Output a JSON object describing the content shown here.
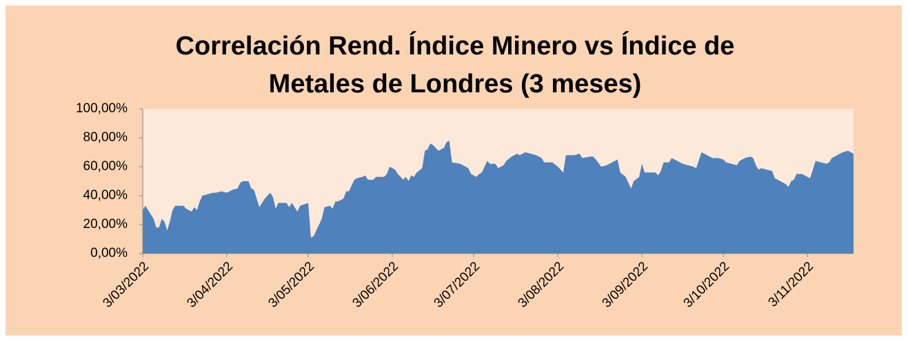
{
  "chart_data": {
    "type": "area",
    "title": "Correlación Rend. Índice Minero vs Índice de Metales de Londres (3 meses)",
    "color": "#4f81bd",
    "x": [
      "2022-03-03",
      "2022-03-04",
      "2022-03-07",
      "2022-03-08",
      "2022-03-09",
      "2022-03-10",
      "2022-03-11",
      "2022-03-12",
      "2022-03-13",
      "2022-03-14",
      "2022-03-15",
      "2022-03-18",
      "2022-03-19",
      "2022-03-21",
      "2022-03-22",
      "2022-03-23",
      "2022-03-24",
      "2022-03-25",
      "2022-03-27",
      "2022-03-29",
      "2022-03-30",
      "2022-04-01",
      "2022-04-03",
      "2022-04-05",
      "2022-04-07",
      "2022-04-08",
      "2022-04-09",
      "2022-04-11",
      "2022-04-12",
      "2022-04-13",
      "2022-04-15",
      "2022-04-17",
      "2022-04-19",
      "2022-04-20",
      "2022-04-21",
      "2022-04-22",
      "2022-04-25",
      "2022-04-26",
      "2022-04-27",
      "2022-04-29",
      "2022-04-30",
      "2022-05-03",
      "2022-05-04",
      "2022-05-05",
      "2022-05-06",
      "2022-05-08",
      "2022-05-09",
      "2022-05-11",
      "2022-05-12",
      "2022-05-13",
      "2022-05-14",
      "2022-05-16",
      "2022-05-17",
      "2022-05-18",
      "2022-05-20",
      "2022-05-21",
      "2022-05-23",
      "2022-05-24",
      "2022-05-25",
      "2022-05-27",
      "2022-05-28",
      "2022-05-31",
      "2022-06-01",
      "2022-06-02",
      "2022-06-04",
      "2022-06-05",
      "2022-06-07",
      "2022-06-08",
      "2022-06-09",
      "2022-06-10",
      "2022-06-11",
      "2022-06-12",
      "2022-06-14",
      "2022-06-15",
      "2022-06-16",
      "2022-06-17",
      "2022-06-18",
      "2022-06-19",
      "2022-06-20",
      "2022-06-22",
      "2022-06-23",
      "2022-06-24",
      "2022-06-25",
      "2022-06-28",
      "2022-06-29",
      "2022-07-01",
      "2022-07-02",
      "2022-07-04",
      "2022-07-05",
      "2022-07-06",
      "2022-07-08",
      "2022-07-09",
      "2022-07-11",
      "2022-07-12",
      "2022-07-14",
      "2022-07-15",
      "2022-07-17",
      "2022-07-19",
      "2022-07-20",
      "2022-07-22",
      "2022-07-24",
      "2022-07-26",
      "2022-07-28",
      "2022-07-29",
      "2022-08-01",
      "2022-08-03",
      "2022-08-05",
      "2022-08-06",
      "2022-08-09",
      "2022-08-11",
      "2022-08-12",
      "2022-08-15",
      "2022-08-16",
      "2022-08-17",
      "2022-08-19",
      "2022-08-21",
      "2022-08-23",
      "2022-08-25",
      "2022-08-26",
      "2022-08-28",
      "2022-08-29",
      "2022-08-30",
      "2022-08-31",
      "2022-09-02",
      "2022-09-03",
      "2022-09-04",
      "2022-09-06",
      "2022-09-08",
      "2022-09-09",
      "2022-09-10",
      "2022-09-11",
      "2022-09-13",
      "2022-09-14",
      "2022-09-16",
      "2022-09-18",
      "2022-09-20",
      "2022-09-22",
      "2022-09-23",
      "2022-09-25",
      "2022-09-27",
      "2022-09-29",
      "2022-10-01",
      "2022-10-03",
      "2022-10-04",
      "2022-10-06",
      "2022-10-08",
      "2022-10-09",
      "2022-10-11",
      "2022-10-13",
      "2022-10-14",
      "2022-10-15",
      "2022-10-16",
      "2022-10-17",
      "2022-10-19",
      "2022-10-21",
      "2022-10-22",
      "2022-10-24",
      "2022-10-26",
      "2022-10-27",
      "2022-10-28",
      "2022-10-29",
      "2022-10-30",
      "2022-11-01",
      "2022-11-03",
      "2022-11-04",
      "2022-11-06",
      "2022-11-08",
      "2022-11-10",
      "2022-11-11",
      "2022-11-12",
      "2022-11-14",
      "2022-11-16",
      "2022-11-18",
      "2022-11-20"
    ],
    "values": [
      30,
      33,
      24,
      18,
      18,
      24,
      22,
      16,
      22,
      30,
      33,
      33,
      31,
      29,
      32,
      30,
      36,
      40,
      41,
      42,
      42,
      43,
      42,
      44,
      45,
      49,
      50,
      50,
      45,
      44,
      32,
      38,
      42,
      39,
      31,
      35,
      35,
      32,
      35,
      29,
      33,
      35,
      11,
      12,
      16,
      24,
      32,
      33,
      31,
      36,
      36,
      38,
      43,
      43,
      51,
      52,
      53,
      54,
      51,
      51,
      53,
      53,
      55,
      60,
      58,
      55,
      51,
      53,
      50,
      54,
      53,
      56,
      59,
      71,
      72,
      76,
      75,
      73,
      71,
      73,
      77,
      78,
      63,
      62,
      61,
      59,
      55,
      53,
      55,
      56,
      64,
      62,
      62,
      59,
      61,
      64,
      67,
      69,
      68,
      70,
      69,
      68,
      66,
      63,
      63,
      60,
      56,
      68,
      68,
      69,
      66,
      67,
      67,
      65,
      60,
      61,
      63,
      65,
      56,
      53,
      49,
      45,
      50,
      53,
      62,
      56,
      56,
      56,
      54,
      57,
      63,
      63,
      66,
      64,
      62,
      61,
      60,
      59,
      70,
      68,
      66,
      66,
      65,
      63,
      62,
      61,
      64,
      66,
      67,
      66,
      61,
      58,
      59,
      58,
      57,
      52,
      50,
      48,
      46,
      50,
      51,
      55,
      55,
      53,
      52,
      64,
      63,
      62,
      63,
      66,
      68,
      70,
      71,
      69
    ],
    "xlim": [
      "2022-03-03",
      "2022-11-20"
    ],
    "xticks": [
      {
        "value": "2022-03-03",
        "label": "3/03/2022"
      },
      {
        "value": "2022-04-03",
        "label": "3/04/2022"
      },
      {
        "value": "2022-05-03",
        "label": "3/05/2022"
      },
      {
        "value": "2022-06-03",
        "label": "3/06/2022"
      },
      {
        "value": "2022-07-03",
        "label": "3/07/2022"
      },
      {
        "value": "2022-08-03",
        "label": "3/08/2022"
      },
      {
        "value": "2022-09-03",
        "label": "3/09/2022"
      },
      {
        "value": "2022-10-03",
        "label": "3/10/2022"
      },
      {
        "value": "2022-11-03",
        "label": "3/11/2022"
      }
    ],
    "ylim": [
      0,
      100
    ],
    "yticks": [
      {
        "value": 0,
        "label": "0,00%"
      },
      {
        "value": 20,
        "label": "20,00%"
      },
      {
        "value": 40,
        "label": "40,00%"
      },
      {
        "value": 60,
        "label": "60,00%"
      },
      {
        "value": 80,
        "label": "80,00%"
      },
      {
        "value": 100,
        "label": "100,00%"
      }
    ],
    "grid": false
  }
}
